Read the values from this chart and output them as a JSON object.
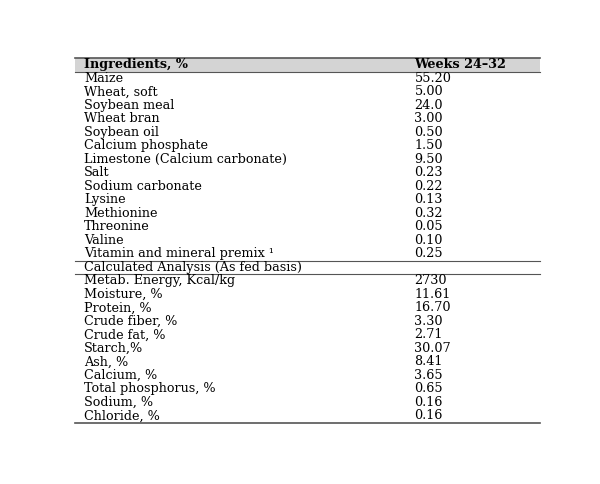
{
  "header_col1": "Ingredients, %",
  "header_col2": "Weeks 24–32",
  "ingredients": [
    [
      "Maize",
      "55.20"
    ],
    [
      "Wheat, soft",
      "5.00"
    ],
    [
      "Soybean meal",
      "24.0"
    ],
    [
      "Wheat bran",
      "3.00"
    ],
    [
      "Soybean oil",
      "0.50"
    ],
    [
      "Calcium phosphate",
      "1.50"
    ],
    [
      "Limestone (Calcium carbonate)",
      "9.50"
    ],
    [
      "Salt",
      "0.23"
    ],
    [
      "Sodium carbonate",
      "0.22"
    ],
    [
      "Lysine",
      "0.13"
    ],
    [
      "Methionine",
      "0.32"
    ],
    [
      "Threonine",
      "0.05"
    ],
    [
      "Valine",
      "0.10"
    ],
    [
      "Vitamin and mineral premix ¹",
      "0.25"
    ]
  ],
  "section2_header": "Calculated Analysis (As fed basis)",
  "analysis": [
    [
      "Metab. Energy, Kcal/kg",
      "2730"
    ],
    [
      "Moisture, %",
      "11.61"
    ],
    [
      "Protein, %",
      "16.70"
    ],
    [
      "Crude fiber, %",
      "3.30"
    ],
    [
      "Crude fat, %",
      "2.71"
    ],
    [
      "Starch,%",
      "30.07"
    ],
    [
      "Ash, %",
      "8.41"
    ],
    [
      "Calcium, %",
      "3.65"
    ],
    [
      "Total phosphorus, %",
      "0.65"
    ],
    [
      "Sodium, %",
      "0.16"
    ],
    [
      "Chloride, %",
      "0.16"
    ]
  ],
  "bg_color": "#ffffff",
  "header_bg": "#d4d4d4",
  "line_color": "#555555",
  "text_color": "#000000",
  "font_size": 9.2,
  "header_font_size": 9.2
}
